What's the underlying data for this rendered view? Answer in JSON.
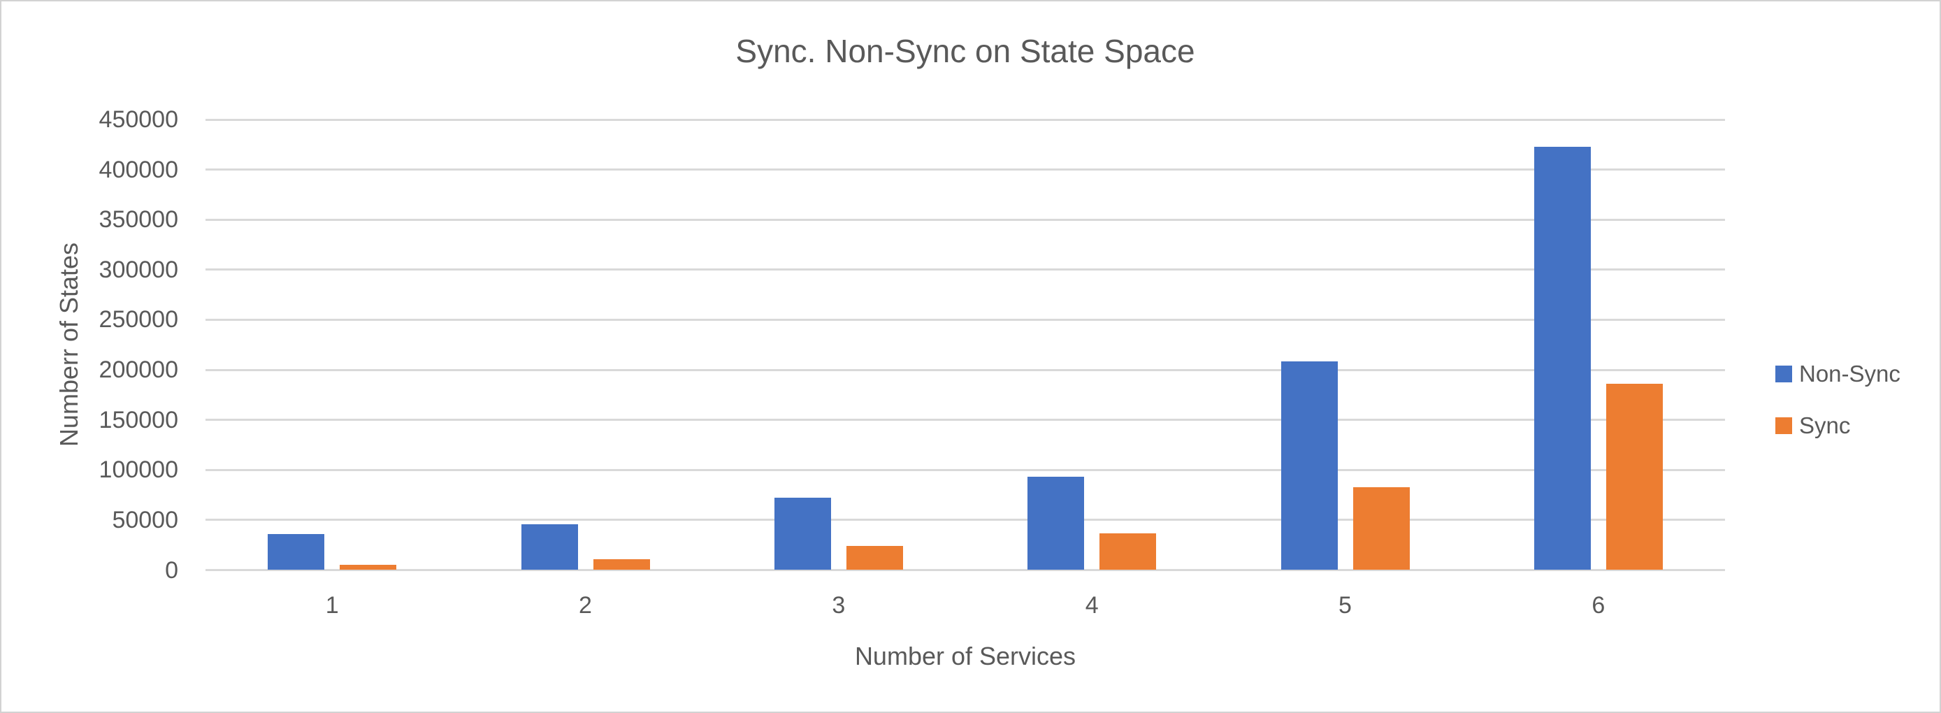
{
  "window": {
    "background": "#ffffff",
    "border_color": "#d2d2d2"
  },
  "chart_data": {
    "type": "bar",
    "title": "Sync. Non-Sync on State Space",
    "xlabel": "Number of Services",
    "ylabel": "Numberr of States",
    "categories": [
      "1",
      "2",
      "3",
      "4",
      "5",
      "6"
    ],
    "series": [
      {
        "name": "Non-Sync",
        "color": "#4472C4",
        "values": [
          36000,
          45500,
          72500,
          93500,
          208500,
          422500
        ]
      },
      {
        "name": "Sync",
        "color": "#ED7D31",
        "values": [
          5000,
          11000,
          24000,
          37000,
          83000,
          186000
        ]
      }
    ],
    "ylim": [
      0,
      450000
    ],
    "ytick_step": 50000,
    "yticks": [
      "0",
      "50000",
      "100000",
      "150000",
      "200000",
      "250000",
      "300000",
      "350000",
      "400000",
      "450000"
    ],
    "grid": true,
    "legend_position": "right",
    "legend": [
      "Non-Sync",
      "Sync"
    ],
    "colors": {
      "text": "#595959",
      "gridline": "#d9d9d9"
    }
  }
}
